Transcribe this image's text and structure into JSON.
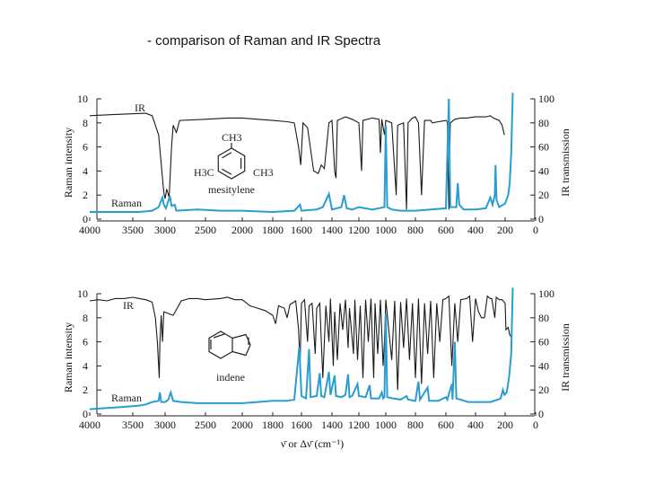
{
  "slide": {
    "title": "- comparison of Raman and IR Spectra"
  },
  "colors": {
    "ir": "#1a1a1a",
    "raman": "#2a9dd0"
  },
  "xaxis_shared_label": "ν̄ or Δν̄ (cm⁻¹)",
  "chart_data": [
    {
      "type": "line",
      "molecule": "mesitylene",
      "structure_labels": {
        "top": "CH3",
        "left": "H3C",
        "right": "CH3"
      },
      "x_ticks": [
        "4000",
        "3500",
        "3000",
        "2500",
        "2000",
        "1800",
        "1600",
        "1400",
        "1200",
        "1000",
        "800",
        "600",
        "400",
        "200",
        "0"
      ],
      "left_axis": {
        "label": "Raman intensity",
        "ticks": [
          "0",
          "2",
          "4",
          "6",
          "8",
          "10"
        ],
        "range": [
          0,
          10
        ]
      },
      "right_axis": {
        "label": "IR transmission",
        "ticks": [
          "0",
          "20",
          "40",
          "60",
          "80",
          "100"
        ],
        "range": [
          0,
          100
        ]
      },
      "series": [
        {
          "name": "IR",
          "axis": "right",
          "x": [
            "4000",
            "3500",
            "3000",
            "2900",
            "2800",
            "2500",
            "2000",
            "1800",
            "1600",
            "1500",
            "1400",
            "1200",
            "1000",
            "800",
            "600",
            "400",
            "200"
          ],
          "y": [
            86,
            88,
            17,
            78,
            82,
            83,
            84,
            83,
            81,
            35,
            33,
            40,
            60,
            30,
            45,
            80,
            70
          ]
        },
        {
          "name": "Raman",
          "axis": "left",
          "x": [
            "4000",
            "3500",
            "3000",
            "2900",
            "2800",
            "2500",
            "2000",
            "1800",
            "1600",
            "1400",
            "1300",
            "1000",
            "600",
            "500",
            "300",
            "200",
            "150"
          ],
          "y": [
            0.6,
            0.6,
            1.9,
            1.1,
            0.7,
            0.8,
            0.7,
            0.6,
            0.7,
            2.1,
            2.0,
            7.8,
            10,
            3.0,
            4.5,
            0.8,
            10
          ]
        }
      ]
    },
    {
      "type": "line",
      "molecule": "indene",
      "x_ticks": [
        "4000",
        "3500",
        "3000",
        "2500",
        "2000",
        "1800",
        "1600",
        "1400",
        "1200",
        "1000",
        "800",
        "600",
        "400",
        "200",
        "0"
      ],
      "left_axis": {
        "label": "Raman intensity",
        "ticks": [
          "0",
          "2",
          "4",
          "6",
          "8",
          "10"
        ],
        "range": [
          0,
          10
        ]
      },
      "right_axis": {
        "label": "IR transmission",
        "ticks": [
          "0",
          "20",
          "40",
          "60",
          "80",
          "100"
        ],
        "range": [
          0,
          100
        ]
      },
      "series": [
        {
          "name": "IR",
          "axis": "right",
          "x": [
            "4000",
            "3500",
            "3000",
            "2500",
            "2000",
            "1800",
            "1600",
            "1400",
            "1200",
            "1000",
            "800",
            "600",
            "400",
            "200"
          ],
          "y": [
            94,
            96,
            33,
            92,
            93,
            82,
            55,
            30,
            35,
            40,
            45,
            30,
            35,
            62
          ]
        },
        {
          "name": "Raman",
          "axis": "left",
          "x": [
            "4000",
            "3500",
            "3000",
            "2900",
            "2500",
            "2000",
            "1800",
            "1600",
            "1550",
            "1400",
            "1200",
            "1000",
            "800",
            "600",
            "400",
            "200",
            "150"
          ],
          "y": [
            0.4,
            0.7,
            1.8,
            1.8,
            0.8,
            0.9,
            1.1,
            5.6,
            5.4,
            3.5,
            3.3,
            8.3,
            2.7,
            6.0,
            1.5,
            1.5,
            10.5
          ]
        }
      ]
    }
  ]
}
